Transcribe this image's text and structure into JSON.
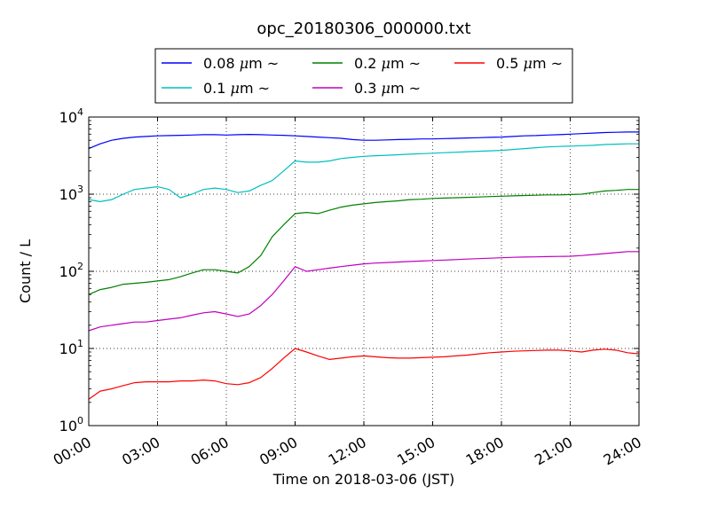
{
  "chart_data": {
    "type": "line",
    "title": "opc_20180306_000000.txt",
    "xlabel": "Time on 2018-03-06 (JST)",
    "ylabel": "Count / L",
    "yscale": "log",
    "xlim": [
      0,
      24
    ],
    "ylim": [
      1,
      10000
    ],
    "grid": true,
    "legend_position": "top-center",
    "x_tick_values": [
      0,
      3,
      6,
      9,
      12,
      15,
      18,
      21,
      24
    ],
    "x_tick_labels": [
      "00:00",
      "03:00",
      "06:00",
      "09:00",
      "12:00",
      "15:00",
      "18:00",
      "21:00",
      "24:00"
    ],
    "y_tick_values": [
      1,
      10,
      100,
      1000,
      10000
    ],
    "y_tick_labels": [
      {
        "base": "10",
        "exp": "0"
      },
      {
        "base": "10",
        "exp": "1"
      },
      {
        "base": "10",
        "exp": "2"
      },
      {
        "base": "10",
        "exp": "3"
      },
      {
        "base": "10",
        "exp": "4"
      }
    ],
    "series": [
      {
        "name": "0.08 μm ~",
        "legend_prefix": "0.08 ",
        "legend_suffix": " ~",
        "color": "#0000ff",
        "x": [
          0,
          0.5,
          1,
          1.5,
          2,
          2.5,
          3,
          3.5,
          4,
          4.5,
          5,
          5.5,
          6,
          6.5,
          7,
          7.5,
          8,
          8.5,
          9,
          9.5,
          10,
          10.5,
          11,
          11.5,
          12,
          12.5,
          13,
          13.5,
          14,
          14.5,
          15,
          15.5,
          16,
          16.5,
          17,
          17.5,
          18,
          18.5,
          19,
          19.5,
          20,
          20.5,
          21,
          21.5,
          22,
          22.5,
          23,
          23.5,
          24
        ],
        "y": [
          3900,
          4500,
          5000,
          5300,
          5500,
          5600,
          5700,
          5750,
          5800,
          5850,
          5900,
          5900,
          5850,
          5900,
          5950,
          5900,
          5850,
          5800,
          5700,
          5600,
          5500,
          5400,
          5300,
          5100,
          5000,
          5000,
          5050,
          5100,
          5150,
          5200,
          5200,
          5250,
          5300,
          5350,
          5400,
          5450,
          5500,
          5600,
          5700,
          5750,
          5850,
          5900,
          6000,
          6100,
          6200,
          6300,
          6350,
          6400,
          6400
        ]
      },
      {
        "name": "0.1 μm ~",
        "legend_prefix": "0.1 ",
        "legend_suffix": " ~",
        "color": "#00bfbf",
        "x": [
          0,
          0.5,
          1,
          1.5,
          2,
          2.5,
          3,
          3.5,
          4,
          4.5,
          5,
          5.5,
          6,
          6.5,
          7,
          7.5,
          8,
          8.5,
          9,
          9.5,
          10,
          10.5,
          11,
          11.5,
          12,
          12.5,
          13,
          13.5,
          14,
          14.5,
          15,
          15.5,
          16,
          16.5,
          17,
          17.5,
          18,
          18.5,
          19,
          19.5,
          20,
          20.5,
          21,
          21.5,
          22,
          22.5,
          23,
          23.5,
          24
        ],
        "y": [
          850,
          800,
          850,
          1000,
          1150,
          1200,
          1250,
          1150,
          900,
          1000,
          1150,
          1200,
          1150,
          1050,
          1100,
          1300,
          1500,
          2000,
          2700,
          2600,
          2600,
          2700,
          2900,
          3000,
          3100,
          3150,
          3200,
          3250,
          3300,
          3350,
          3400,
          3450,
          3500,
          3550,
          3600,
          3650,
          3700,
          3800,
          3900,
          4000,
          4100,
          4150,
          4200,
          4250,
          4300,
          4400,
          4450,
          4500,
          4500
        ]
      },
      {
        "name": "0.2 μm ~",
        "legend_prefix": "0.2 ",
        "legend_suffix": " ~",
        "color": "#008000",
        "x": [
          0,
          0.5,
          1,
          1.5,
          2,
          2.5,
          3,
          3.5,
          4,
          4.5,
          5,
          5.5,
          6,
          6.5,
          7,
          7.5,
          8,
          8.5,
          9,
          9.5,
          10,
          10.5,
          11,
          11.5,
          12,
          12.5,
          13,
          13.5,
          14,
          14.5,
          15,
          15.5,
          16,
          16.5,
          17,
          17.5,
          18,
          18.5,
          19,
          19.5,
          20,
          20.5,
          21,
          21.5,
          22,
          22.5,
          23,
          23.5,
          24
        ],
        "y": [
          50,
          58,
          62,
          68,
          70,
          72,
          75,
          78,
          85,
          95,
          105,
          105,
          100,
          95,
          115,
          160,
          280,
          400,
          560,
          580,
          560,
          620,
          680,
          720,
          750,
          780,
          800,
          820,
          850,
          860,
          880,
          890,
          900,
          910,
          920,
          930,
          940,
          950,
          960,
          970,
          980,
          980,
          990,
          1000,
          1050,
          1100,
          1120,
          1150,
          1150
        ]
      },
      {
        "name": "0.3 μm ~",
        "legend_prefix": "0.3 ",
        "legend_suffix": " ~",
        "color": "#bf00bf",
        "x": [
          0,
          0.5,
          1,
          1.5,
          2,
          2.5,
          3,
          3.5,
          4,
          4.5,
          5,
          5.5,
          6,
          6.5,
          7,
          7.5,
          8,
          8.5,
          9,
          9.5,
          10,
          10.5,
          11,
          11.5,
          12,
          12.5,
          13,
          13.5,
          14,
          14.5,
          15,
          15.5,
          16,
          16.5,
          17,
          17.5,
          18,
          18.5,
          19,
          19.5,
          20,
          20.5,
          21,
          21.5,
          22,
          22.5,
          23,
          23.5,
          24
        ],
        "y": [
          17,
          19,
          20,
          21,
          22,
          22,
          23,
          24,
          25,
          27,
          29,
          30,
          28,
          26,
          28,
          36,
          50,
          75,
          115,
          100,
          105,
          110,
          115,
          120,
          125,
          128,
          130,
          132,
          134,
          136,
          138,
          140,
          142,
          144,
          146,
          148,
          150,
          152,
          153,
          154,
          155,
          156,
          157,
          160,
          165,
          170,
          175,
          180,
          180
        ]
      },
      {
        "name": "0.5 μm ~",
        "legend_prefix": "0.5 ",
        "legend_suffix": " ~",
        "color": "#ff0000",
        "x": [
          0,
          0.5,
          1,
          1.5,
          2,
          2.5,
          3,
          3.5,
          4,
          4.5,
          5,
          5.5,
          6,
          6.5,
          7,
          7.5,
          8,
          8.5,
          9,
          9.5,
          10,
          10.5,
          11,
          11.5,
          12,
          12.5,
          13,
          13.5,
          14,
          14.5,
          15,
          15.5,
          16,
          16.5,
          17,
          17.5,
          18,
          18.5,
          19,
          19.5,
          20,
          20.5,
          21,
          21.5,
          22,
          22.5,
          23,
          23.5,
          24
        ],
        "y": [
          2.2,
          2.8,
          3.0,
          3.3,
          3.6,
          3.7,
          3.7,
          3.7,
          3.8,
          3.8,
          3.9,
          3.8,
          3.5,
          3.4,
          3.6,
          4.2,
          5.5,
          7.5,
          10.0,
          9.0,
          8.0,
          7.2,
          7.5,
          7.8,
          8.0,
          7.8,
          7.6,
          7.5,
          7.5,
          7.6,
          7.7,
          7.8,
          8.0,
          8.2,
          8.5,
          8.8,
          9.0,
          9.2,
          9.3,
          9.4,
          9.5,
          9.5,
          9.3,
          9.0,
          9.5,
          9.8,
          9.5,
          8.8,
          8.5
        ]
      }
    ]
  }
}
